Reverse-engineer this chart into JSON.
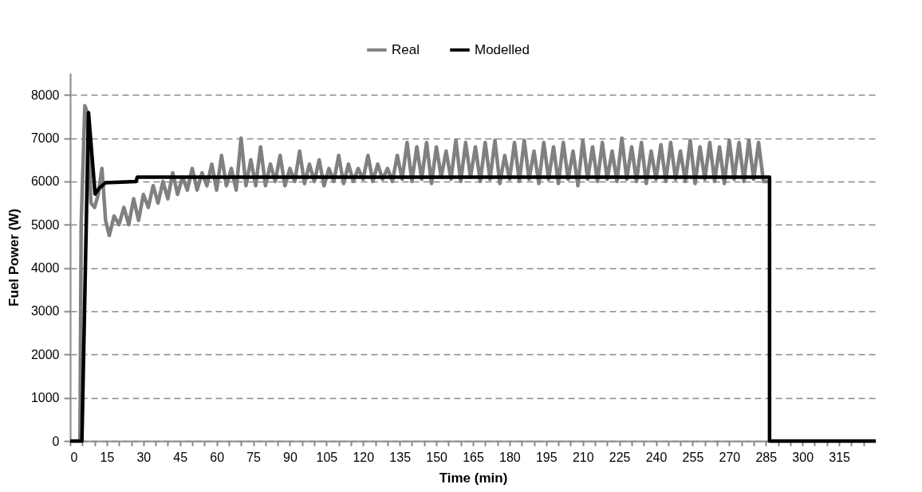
{
  "chart_data": {
    "type": "line",
    "xlabel": "Time (min)",
    "ylabel": "Fuel Power (W)",
    "xlim": [
      0,
      330
    ],
    "xticks": [
      0,
      {
        "value": 5,
        "label": null
      },
      {
        "value": 10,
        "label": null
      },
      15,
      {
        "value": 20,
        "label": null
      },
      {
        "value": 25,
        "label": null
      },
      30,
      {
        "value": 35,
        "label": null
      },
      {
        "value": 40,
        "label": null
      },
      45,
      {
        "value": 50,
        "label": null
      },
      {
        "value": 55,
        "label": null
      },
      60,
      {
        "value": 65,
        "label": null
      },
      {
        "value": 70,
        "label": null
      },
      75,
      {
        "value": 80,
        "label": null
      },
      {
        "value": 85,
        "label": null
      },
      90,
      {
        "value": 95,
        "label": null
      },
      {
        "value": 100,
        "label": null
      },
      105,
      {
        "value": 110,
        "label": null
      },
      {
        "value": 115,
        "label": null
      },
      120,
      {
        "value": 125,
        "label": null
      },
      {
        "value": 130,
        "label": null
      },
      135,
      {
        "value": 140,
        "label": null
      },
      {
        "value": 145,
        "label": null
      },
      150,
      {
        "value": 155,
        "label": null
      },
      {
        "value": 160,
        "label": null
      },
      165,
      {
        "value": 170,
        "label": null
      },
      {
        "value": 175,
        "label": null
      },
      180,
      {
        "value": 185,
        "label": null
      },
      {
        "value": 190,
        "label": null
      },
      195,
      {
        "value": 200,
        "label": null
      },
      {
        "value": 205,
        "label": null
      },
      210,
      {
        "value": 215,
        "label": null
      },
      {
        "value": 220,
        "label": null
      },
      225,
      {
        "value": 230,
        "label": null
      },
      {
        "value": 235,
        "label": null
      },
      240,
      {
        "value": 245,
        "label": null
      },
      {
        "value": 250,
        "label": null
      },
      255,
      {
        "value": 260,
        "label": null
      },
      {
        "value": 265,
        "label": null
      },
      270,
      {
        "value": 275,
        "label": null
      },
      {
        "value": 280,
        "label": null
      },
      285,
      {
        "value": 290,
        "label": null
      },
      {
        "value": 295,
        "label": null
      },
      300,
      {
        "value": 305,
        "label": null
      },
      {
        "value": 310,
        "label": null
      },
      315,
      {
        "value": 320,
        "label": null
      },
      {
        "value": 325,
        "label": null
      }
    ],
    "ylim": [
      0,
      8500
    ],
    "yticks": [
      0,
      1000,
      2000,
      3000,
      4000,
      5000,
      6000,
      7000,
      8000
    ],
    "grid": "y",
    "legend": "top",
    "marker": "none",
    "line_style": "solid",
    "series": [
      {
        "name": "Real",
        "color": "#808080",
        "x": [
          4,
          4.5,
          6,
          7,
          8.5,
          10,
          11.5,
          13,
          14.5,
          16,
          18,
          20,
          22,
          24,
          26,
          28,
          30,
          32,
          34,
          36,
          38,
          40,
          42,
          44,
          46,
          48,
          50,
          52,
          54,
          56,
          58,
          60,
          62,
          64,
          66,
          68,
          70,
          72,
          74,
          76,
          78,
          80,
          82,
          84,
          86,
          88,
          90,
          92,
          94,
          96,
          98,
          100,
          102,
          104,
          106,
          108,
          110,
          112,
          114,
          116,
          118,
          120,
          122,
          124,
          126,
          128,
          130,
          132,
          134,
          136,
          138,
          140,
          142,
          144,
          146,
          148,
          150,
          152,
          154,
          156,
          158,
          160,
          162,
          164,
          166,
          168,
          170,
          172,
          174,
          176,
          178,
          180,
          182,
          184,
          186,
          188,
          190,
          192,
          194,
          196,
          198,
          200,
          202,
          204,
          206,
          208,
          210,
          212,
          214,
          216,
          218,
          220,
          222,
          224,
          226,
          228,
          230,
          232,
          234,
          236,
          238,
          240,
          242,
          244,
          246,
          248,
          250,
          252,
          254,
          256,
          258,
          260,
          262,
          264,
          266,
          268,
          270,
          272,
          274,
          276,
          278,
          280,
          282,
          284,
          286
        ],
        "values": [
          0,
          5000,
          7750,
          7600,
          5500,
          5400,
          5700,
          6300,
          5100,
          4750,
          5200,
          5000,
          5400,
          5000,
          5600,
          5100,
          5700,
          5400,
          5900,
          5500,
          6000,
          5600,
          6200,
          5700,
          6100,
          5800,
          6300,
          5800,
          6200,
          5900,
          6400,
          5800,
          6600,
          5900,
          6300,
          5800,
          7000,
          5900,
          6500,
          5900,
          6800,
          5900,
          6400,
          6000,
          6600,
          5900,
          6300,
          6000,
          6700,
          5950,
          6400,
          6000,
          6500,
          5900,
          6300,
          6000,
          6600,
          5950,
          6400,
          6000,
          6300,
          6050,
          6600,
          6000,
          6400,
          6050,
          6300,
          6000,
          6600,
          6050,
          6900,
          6000,
          6800,
          6050,
          6900,
          5950,
          6800,
          6100,
          6700,
          6050,
          6950,
          6000,
          6900,
          6100,
          6800,
          6000,
          6900,
          6050,
          6950,
          5950,
          6600,
          6050,
          6900,
          6000,
          6950,
          6050,
          6700,
          5950,
          6900,
          6050,
          6800,
          5950,
          6900,
          6050,
          6700,
          5900,
          6950,
          6050,
          6800,
          6000,
          6900,
          6050,
          6700,
          6000,
          7000,
          6050,
          6800,
          6000,
          6900,
          5950,
          6700,
          6050,
          6850,
          6000,
          6900,
          6050,
          6700,
          6000,
          6950,
          5950,
          6800,
          6050,
          6900,
          6000,
          6800,
          5950,
          6950,
          6050,
          6900,
          6000,
          6950,
          6050,
          6900,
          6000,
          6000
        ]
      },
      {
        "name": "Modelled",
        "color": "#000000",
        "x": [
          0,
          4.8,
          7.5,
          10.2,
          12,
          14.5,
          27,
          27.5,
          286.5,
          286.5,
          330
        ],
        "values": [
          0,
          0,
          7590,
          5710,
          5850,
          5970,
          6000,
          6100,
          6100,
          0,
          0
        ]
      }
    ]
  }
}
